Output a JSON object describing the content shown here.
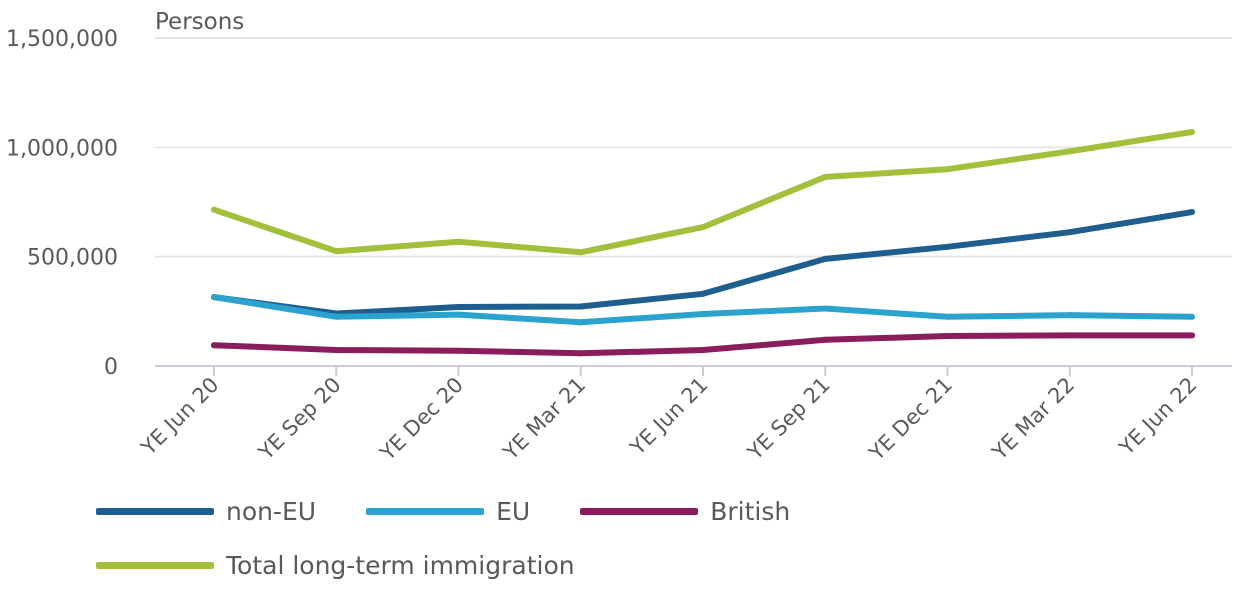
{
  "chart_data": {
    "type": "line",
    "ylabel": "Persons",
    "x": [
      "YE Jun 20",
      "YE Sep 20",
      "YE Dec 20",
      "YE Mar 21",
      "YE Jun 21",
      "YE Sep 21",
      "YE Dec 21",
      "YE Mar 22",
      "YE Jun 22"
    ],
    "ylim": [
      0,
      1500000
    ],
    "yticks": [
      0,
      500000,
      1000000,
      1500000
    ],
    "ytick_labels": [
      "0",
      "500,000",
      "1,000,000",
      "1,500,000"
    ],
    "grid": "horizontal",
    "legend_position": "bottom",
    "series": [
      {
        "name": "non-EU",
        "color": "#1f5f8f",
        "values": [
          315000,
          240000,
          270000,
          272000,
          330000,
          490000,
          545000,
          612000,
          704000
        ]
      },
      {
        "name": "EU",
        "color": "#2aa3cf",
        "values": [
          315000,
          225000,
          235000,
          200000,
          238000,
          263000,
          225000,
          233000,
          225000
        ]
      },
      {
        "name": "British",
        "color": "#8a1d5c",
        "values": [
          95000,
          73000,
          70000,
          58000,
          73000,
          120000,
          137000,
          140000,
          140000
        ]
      },
      {
        "name": "Total long-term immigration",
        "color": "#a3c03b",
        "values": [
          715000,
          525000,
          568000,
          520000,
          635000,
          865000,
          900000,
          982000,
          1070000
        ]
      }
    ]
  }
}
